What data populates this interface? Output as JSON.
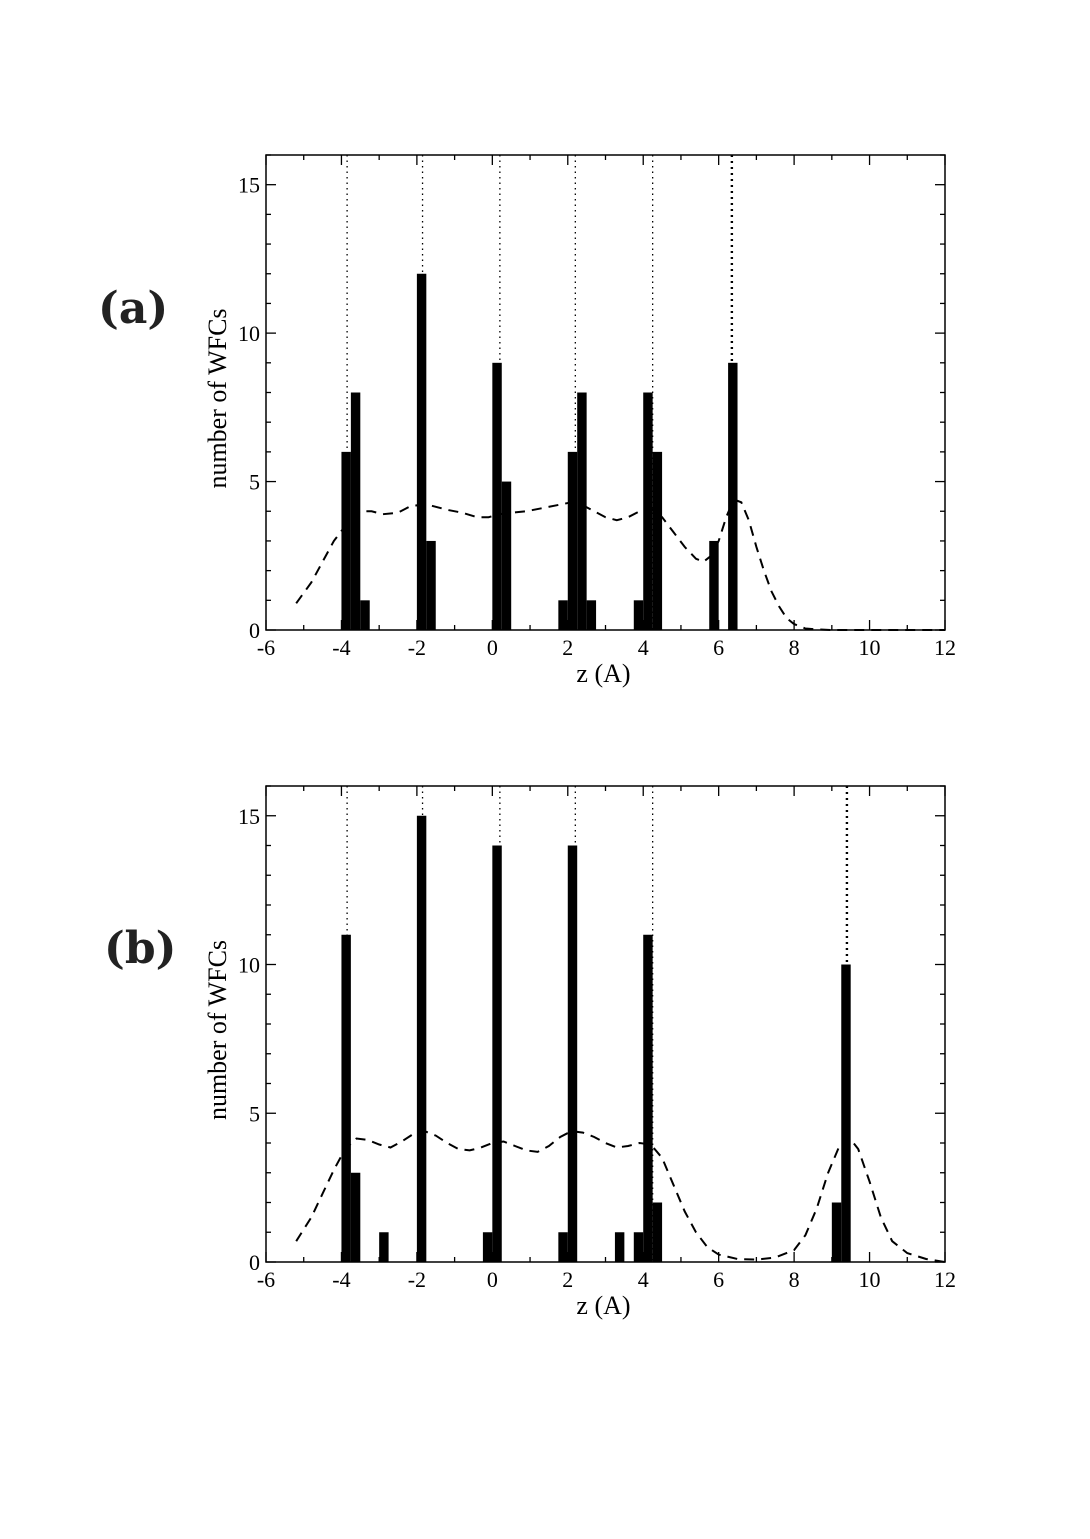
{
  "panels": [
    {
      "label": "(a)"
    },
    {
      "label": "(b)"
    }
  ],
  "chart_data": [
    {
      "type": "bar",
      "xlabel": "z (A)",
      "ylabel": "number of WFCs",
      "xlim": [
        -6,
        12
      ],
      "ylim": [
        0,
        16
      ],
      "xticks": [
        -6,
        -4,
        -2,
        0,
        2,
        4,
        6,
        8,
        10,
        12
      ],
      "yticks": [
        0,
        5,
        10,
        15
      ],
      "grid": false,
      "colors": {
        "bars": "#000000",
        "curve": "#000000",
        "reference_lines": "#000000"
      },
      "reference_lines": [
        -3.85,
        -1.85,
        0.2,
        2.2,
        4.25,
        6.35
      ],
      "histogram": {
        "bin_width": 0.25,
        "bars": [
          {
            "x": -3.875,
            "value": 6
          },
          {
            "x": -3.625,
            "value": 8
          },
          {
            "x": -3.375,
            "value": 1
          },
          {
            "x": -1.875,
            "value": 12
          },
          {
            "x": -1.625,
            "value": 3
          },
          {
            "x": 0.125,
            "value": 9
          },
          {
            "x": 0.375,
            "value": 5
          },
          {
            "x": 1.875,
            "value": 1
          },
          {
            "x": 2.125,
            "value": 6
          },
          {
            "x": 2.375,
            "value": 8
          },
          {
            "x": 2.625,
            "value": 1
          },
          {
            "x": 3.875,
            "value": 1
          },
          {
            "x": 4.125,
            "value": 8
          },
          {
            "x": 4.375,
            "value": 6
          },
          {
            "x": 5.875,
            "value": 3
          },
          {
            "x": 6.375,
            "value": 9
          }
        ]
      },
      "density_curve": {
        "style": "dashed",
        "x": [
          -5.2,
          -4.8,
          -4.5,
          -4.2,
          -3.9,
          -3.7,
          -3.5,
          -3.2,
          -2.9,
          -2.5,
          -2.2,
          -1.8,
          -1.5,
          -1.2,
          -0.8,
          -0.4,
          -0.1,
          0.2,
          0.5,
          0.9,
          1.3,
          1.7,
          2.1,
          2.4,
          2.7,
          3.0,
          3.3,
          3.6,
          3.9,
          4.2,
          4.5,
          4.8,
          5.1,
          5.4,
          5.6,
          5.8,
          6.0,
          6.2,
          6.4,
          6.6,
          6.8,
          7.0,
          7.2,
          7.4,
          7.6,
          7.8,
          8.0,
          8.3,
          8.6,
          9.0,
          10.0,
          11.0,
          12.0
        ],
        "y": [
          0.9,
          1.6,
          2.3,
          3.0,
          3.5,
          3.8,
          4.0,
          4.0,
          3.9,
          3.95,
          4.15,
          4.25,
          4.15,
          4.05,
          3.95,
          3.8,
          3.8,
          3.9,
          3.95,
          4.0,
          4.1,
          4.2,
          4.3,
          4.2,
          4.0,
          3.8,
          3.7,
          3.8,
          4.0,
          4.1,
          3.8,
          3.3,
          2.8,
          2.4,
          2.3,
          2.5,
          3.0,
          3.8,
          4.4,
          4.3,
          3.7,
          2.8,
          2.0,
          1.3,
          0.8,
          0.4,
          0.2,
          0.05,
          0.02,
          0.0,
          0.0,
          0.0,
          0.0
        ]
      }
    },
    {
      "type": "bar",
      "xlabel": "z (A)",
      "ylabel": "number of WFCs",
      "xlim": [
        -6,
        12
      ],
      "ylim": [
        0,
        16
      ],
      "xticks": [
        -6,
        -4,
        -2,
        0,
        2,
        4,
        6,
        8,
        10,
        12
      ],
      "yticks": [
        0,
        5,
        10,
        15
      ],
      "grid": false,
      "colors": {
        "bars": "#000000",
        "curve": "#000000",
        "reference_lines": "#000000"
      },
      "reference_lines": [
        -3.85,
        -1.85,
        0.2,
        2.2,
        4.25,
        9.4
      ],
      "histogram": {
        "bin_width": 0.25,
        "bars": [
          {
            "x": -3.875,
            "value": 11
          },
          {
            "x": -3.625,
            "value": 3
          },
          {
            "x": -2.875,
            "value": 1
          },
          {
            "x": -1.875,
            "value": 15
          },
          {
            "x": -0.125,
            "value": 1
          },
          {
            "x": 0.125,
            "value": 14
          },
          {
            "x": 1.875,
            "value": 1
          },
          {
            "x": 2.125,
            "value": 14
          },
          {
            "x": 3.375,
            "value": 1
          },
          {
            "x": 3.875,
            "value": 1
          },
          {
            "x": 4.125,
            "value": 11
          },
          {
            "x": 4.375,
            "value": 2
          },
          {
            "x": 9.125,
            "value": 2
          },
          {
            "x": 9.375,
            "value": 10
          }
        ]
      },
      "density_curve": {
        "style": "dashed",
        "x": [
          -5.2,
          -4.8,
          -4.5,
          -4.2,
          -3.9,
          -3.6,
          -3.3,
          -3.0,
          -2.7,
          -2.4,
          -2.1,
          -1.8,
          -1.5,
          -1.2,
          -0.9,
          -0.6,
          -0.3,
          0.0,
          0.3,
          0.6,
          0.9,
          1.2,
          1.5,
          1.8,
          2.1,
          2.4,
          2.7,
          3.0,
          3.3,
          3.6,
          3.9,
          4.2,
          4.5,
          4.8,
          5.1,
          5.4,
          5.7,
          6.0,
          6.5,
          7.0,
          7.5,
          8.0,
          8.3,
          8.6,
          8.9,
          9.2,
          9.45,
          9.7,
          10.0,
          10.3,
          10.6,
          11.0,
          11.5,
          12.0
        ],
        "y": [
          0.7,
          1.5,
          2.3,
          3.1,
          3.8,
          4.15,
          4.1,
          3.95,
          3.85,
          4.05,
          4.3,
          4.4,
          4.25,
          4.0,
          3.8,
          3.75,
          3.85,
          4.0,
          4.05,
          3.9,
          3.75,
          3.7,
          3.9,
          4.2,
          4.4,
          4.35,
          4.2,
          4.0,
          3.85,
          3.9,
          4.0,
          3.95,
          3.5,
          2.6,
          1.7,
          1.0,
          0.5,
          0.25,
          0.1,
          0.08,
          0.15,
          0.4,
          0.9,
          1.8,
          3.0,
          3.9,
          4.2,
          3.8,
          2.7,
          1.5,
          0.7,
          0.3,
          0.1,
          0.0
        ]
      }
    }
  ]
}
